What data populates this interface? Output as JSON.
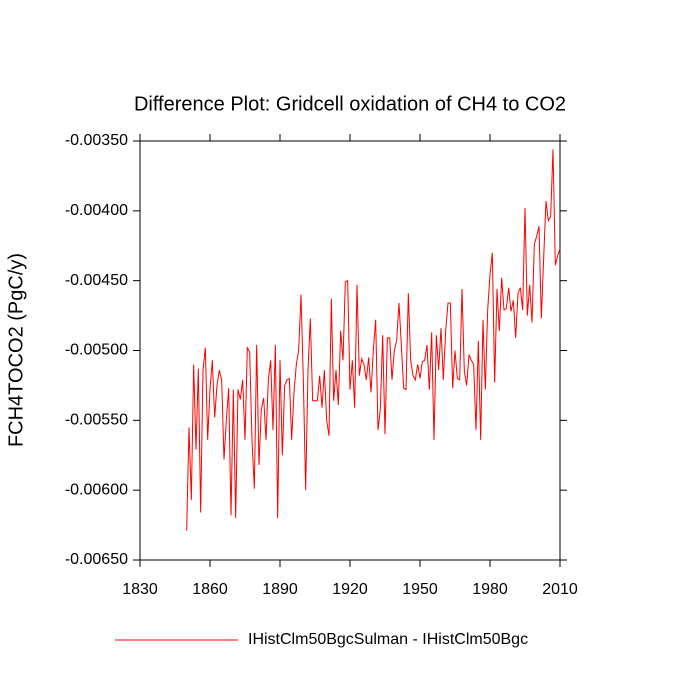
{
  "chart_data": {
    "type": "line",
    "title": "Difference Plot: Gridcell oxidation of CH4 to CO2",
    "y_label": "FCH4TOCO2  (PgC/y)",
    "x": [
      1850,
      1851,
      1852,
      1853,
      1854,
      1855,
      1856,
      1857,
      1858,
      1859,
      1860,
      1861,
      1862,
      1863,
      1864,
      1865,
      1866,
      1867,
      1868,
      1869,
      1870,
      1871,
      1872,
      1873,
      1874,
      1875,
      1876,
      1877,
      1878,
      1879,
      1880,
      1881,
      1882,
      1883,
      1884,
      1885,
      1886,
      1887,
      1888,
      1889,
      1890,
      1891,
      1892,
      1893,
      1894,
      1895,
      1896,
      1897,
      1898,
      1899,
      1900,
      1901,
      1902,
      1903,
      1904,
      1905,
      1906,
      1907,
      1908,
      1909,
      1910,
      1911,
      1912,
      1913,
      1914,
      1915,
      1916,
      1917,
      1918,
      1919,
      1920,
      1921,
      1922,
      1923,
      1924,
      1925,
      1926,
      1927,
      1928,
      1929,
      1930,
      1931,
      1932,
      1933,
      1934,
      1935,
      1936,
      1937,
      1938,
      1939,
      1940,
      1941,
      1942,
      1943,
      1944,
      1945,
      1946,
      1947,
      1948,
      1949,
      1950,
      1951,
      1952,
      1953,
      1954,
      1955,
      1956,
      1957,
      1958,
      1959,
      1960,
      1961,
      1962,
      1963,
      1964,
      1965,
      1966,
      1967,
      1968,
      1969,
      1970,
      1971,
      1972,
      1973,
      1974,
      1975,
      1976,
      1977,
      1978,
      1979,
      1980,
      1981,
      1982,
      1983,
      1984,
      1985,
      1986,
      1987,
      1988,
      1989,
      1990,
      1991,
      1992,
      1993,
      1994,
      1995,
      1996,
      1997,
      1998,
      1999,
      2000,
      2001,
      2002,
      2003,
      2004,
      2005,
      2006,
      2007,
      2008,
      2009,
      2010
    ],
    "series": [
      {
        "name": "IHistClm50BgcSulman - IHistClm50Bgc",
        "color": "#ff0000",
        "values": [
          -0.00629,
          -0.00555,
          -0.00607,
          -0.0051,
          -0.00571,
          -0.00513,
          -0.00616,
          -0.00514,
          -0.00498,
          -0.00564,
          -0.00528,
          -0.00507,
          -0.00548,
          -0.00525,
          -0.00514,
          -0.00521,
          -0.00578,
          -0.0055,
          -0.00527,
          -0.00618,
          -0.00528,
          -0.0062,
          -0.00528,
          -0.00535,
          -0.00521,
          -0.00564,
          -0.00498,
          -0.00501,
          -0.00564,
          -0.00599,
          -0.00496,
          -0.00582,
          -0.00542,
          -0.00534,
          -0.00564,
          -0.00521,
          -0.00507,
          -0.00557,
          -0.00496,
          -0.0062,
          -0.00507,
          -0.00575,
          -0.00525,
          -0.00521,
          -0.0052,
          -0.00564,
          -0.0053,
          -0.0051,
          -0.005,
          -0.0046,
          -0.00521,
          -0.006,
          -0.00514,
          -0.00477,
          -0.00536,
          -0.00536,
          -0.00536,
          -0.00518,
          -0.00541,
          -0.00514,
          -0.0055,
          -0.00561,
          -0.00463,
          -0.00536,
          -0.00514,
          -0.00539,
          -0.00486,
          -0.00507,
          -0.00451,
          -0.0045,
          -0.00528,
          -0.00507,
          -0.00541,
          -0.00453,
          -0.00518,
          -0.00506,
          -0.0051,
          -0.00521,
          -0.00505,
          -0.0053,
          -0.005,
          -0.00478,
          -0.00557,
          -0.00542,
          -0.00489,
          -0.0056,
          -0.00491,
          -0.00491,
          -0.00521,
          -0.005,
          -0.00493,
          -0.00466,
          -0.00496,
          -0.00527,
          -0.00528,
          -0.00459,
          -0.00507,
          -0.00518,
          -0.00521,
          -0.0051,
          -0.0052,
          -0.00508,
          -0.00507,
          -0.00496,
          -0.00528,
          -0.00487,
          -0.00564,
          -0.00489,
          -0.00514,
          -0.00484,
          -0.00521,
          -0.00486,
          -0.00466,
          -0.00466,
          -0.00527,
          -0.005,
          -0.0052,
          -0.00521,
          -0.00456,
          -0.00515,
          -0.00525,
          -0.00503,
          -0.00507,
          -0.0051,
          -0.00557,
          -0.00493,
          -0.00564,
          -0.00478,
          -0.00528,
          -0.00471,
          -0.00446,
          -0.0043,
          -0.00523,
          -0.00456,
          -0.00486,
          -0.00448,
          -0.00471,
          -0.0047,
          -0.00455,
          -0.00472,
          -0.00464,
          -0.00491,
          -0.00459,
          -0.00455,
          -0.00471,
          -0.00398,
          -0.00475,
          -0.00453,
          -0.0048,
          -0.00424,
          -0.00418,
          -0.00411,
          -0.00477,
          -0.00434,
          -0.00393,
          -0.00407,
          -0.00404,
          -0.00356,
          -0.00439,
          -0.00432,
          -0.00427
        ]
      }
    ],
    "xlim": [
      1830,
      2010
    ],
    "xticks": [
      1830,
      1860,
      1890,
      1920,
      1950,
      1980,
      2010
    ],
    "ylim": [
      -0.0065,
      -0.0035
    ],
    "yticks": [
      {
        "value": -0.0065,
        "label": "-0.00650"
      },
      {
        "value": -0.006,
        "label": "-0.00600"
      },
      {
        "value": -0.0055,
        "label": "-0.00550"
      },
      {
        "value": -0.005,
        "label": "-0.00500"
      },
      {
        "value": -0.0045,
        "label": "-0.00450"
      },
      {
        "value": -0.004,
        "label": "-0.00400"
      },
      {
        "value": -0.0035,
        "label": "-0.00350"
      }
    ]
  }
}
